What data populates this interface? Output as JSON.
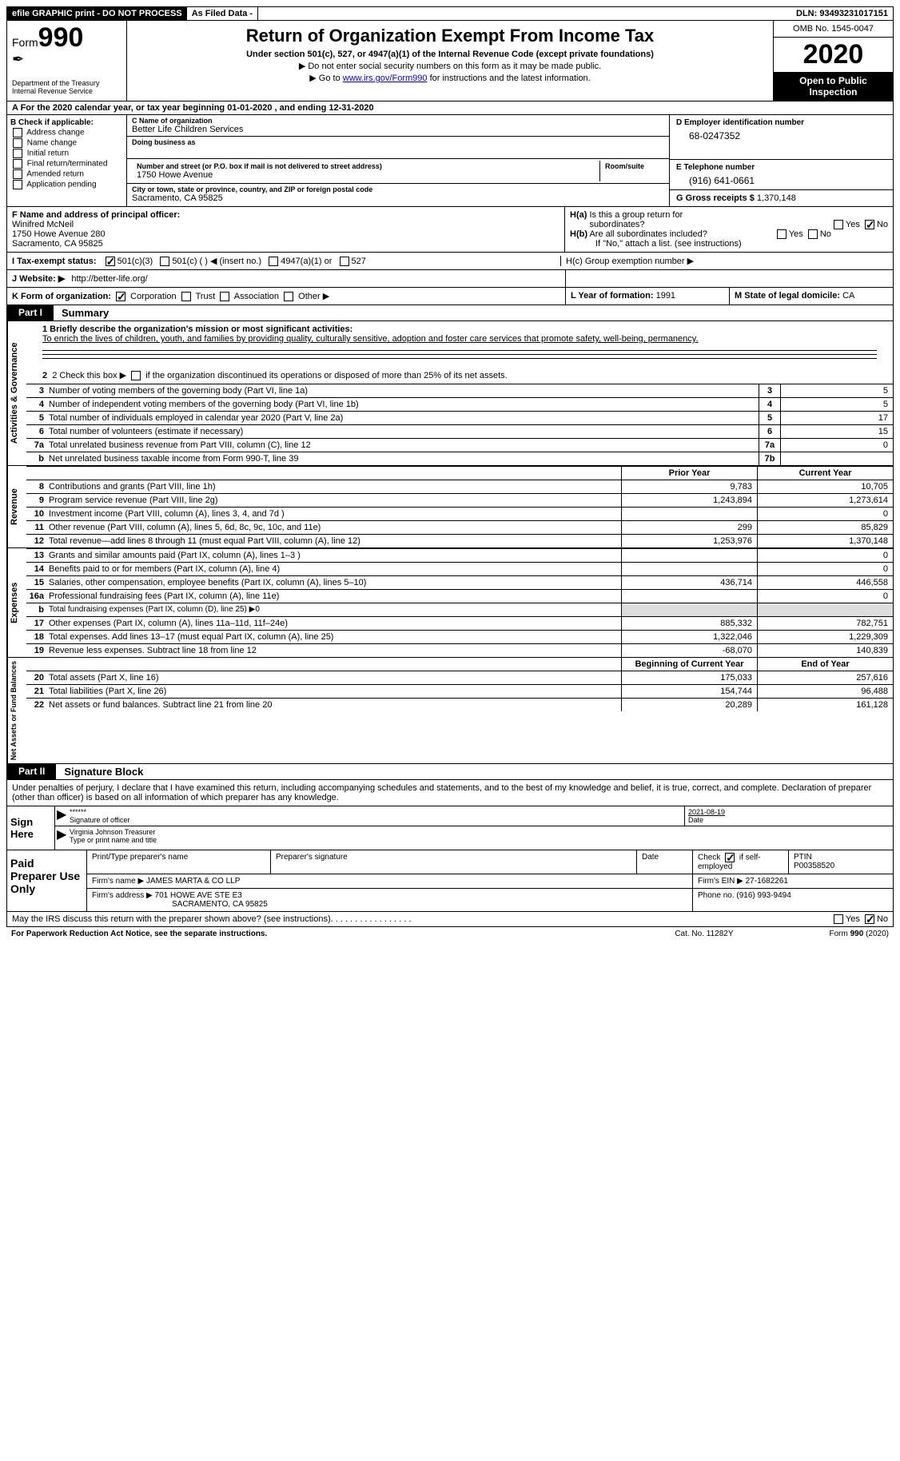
{
  "topbar": {
    "efile": "efile GRAPHIC print - DO NOT PROCESS",
    "asfiled": "As Filed Data -",
    "dln_label": "DLN:",
    "dln": "93493231017151"
  },
  "header": {
    "form_label": "Form",
    "form_num": "990",
    "dept": "Department of the Treasury\nInternal Revenue Service",
    "title": "Return of Organization Exempt From Income Tax",
    "sub": "Under section 501(c), 527, or 4947(a)(1) of the Internal Revenue Code (except private foundations)",
    "line1": "▶ Do not enter social security numbers on this form as it may be made public.",
    "line2_pre": "▶ Go to ",
    "line2_link": "www.irs.gov/Form990",
    "line2_post": " for instructions and the latest information.",
    "omb": "OMB No. 1545-0047",
    "year": "2020",
    "oti": "Open to Public Inspection"
  },
  "rowA": "A   For the 2020 calendar year, or tax year beginning 01-01-2020   , and ending 12-31-2020",
  "colB": {
    "label": "B Check if applicable:",
    "items": [
      "Address change",
      "Name change",
      "Initial return",
      "Final return/terminated",
      "Amended return",
      "Application pending"
    ]
  },
  "org": {
    "c_label": "C Name of organization",
    "name": "Better Life Children Services",
    "dba_label": "Doing business as",
    "dba": "",
    "addr_label": "Number and street (or P.O. box if mail is not delivered to street address)",
    "room_label": "Room/suite",
    "addr": "1750 Howe Avenue",
    "city_label": "City or town, state or province, country, and ZIP or foreign postal code",
    "city": "Sacramento, CA  95825"
  },
  "right": {
    "d_label": "D Employer identification number",
    "ein": "68-0247352",
    "e_label": "E Telephone number",
    "phone": "(916) 641-0661",
    "g_label": "G Gross receipts $",
    "gross": "1,370,148"
  },
  "f": {
    "label": "F  Name and address of principal officer:",
    "name": "Winifred McNeil",
    "addr1": "1750 Howe Avenue 280",
    "addr2": "Sacramento, CA  95825"
  },
  "h": {
    "a": "H(a)  Is this a group return for subordinates?",
    "b": "H(b)  Are all subordinates included?",
    "note": "If \"No,\" attach a list. (see instructions)",
    "c": "H(c)  Group exemption number ▶",
    "yes": "Yes",
    "no": "No"
  },
  "i": {
    "label": "I   Tax-exempt status:",
    "opt1": "501(c)(3)",
    "opt2": "501(c) (   ) ◀ (insert no.)",
    "opt3": "4947(a)(1) or",
    "opt4": "527"
  },
  "j": {
    "label": "J   Website: ▶",
    "val": "http://better-life.org/"
  },
  "k": {
    "label": "K Form of organization:",
    "corp": "Corporation",
    "trust": "Trust",
    "assoc": "Association",
    "other": "Other ▶"
  },
  "l": {
    "label": "L Year of formation:",
    "val": "1991"
  },
  "m": {
    "label": "M State of legal domicile:",
    "val": "CA"
  },
  "part1": {
    "tag": "Part I",
    "title": "Summary"
  },
  "s1": {
    "q1": "1 Briefly describe the organization's mission or most significant activities:",
    "a1": "To enrich the lives of children, youth, and families by providing quality, culturally sensitive, adoption and foster care services that promote safety, well-being, permanency.",
    "q2": "2   Check this box ▶",
    "q2b": " if the organization discontinued its operations or disposed of more than 25% of its net assets.",
    "rows": [
      {
        "n": "3",
        "t": "Number of voting members of the governing body (Part VI, line 1a)",
        "c": "3",
        "v": "5"
      },
      {
        "n": "4",
        "t": "Number of independent voting members of the governing body (Part VI, line 1b)",
        "c": "4",
        "v": "5"
      },
      {
        "n": "5",
        "t": "Total number of individuals employed in calendar year 2020 (Part V, line 2a)",
        "c": "5",
        "v": "17"
      },
      {
        "n": "6",
        "t": "Total number of volunteers (estimate if necessary)",
        "c": "6",
        "v": "15"
      },
      {
        "n": "7a",
        "t": "Total unrelated business revenue from Part VIII, column (C), line 12",
        "c": "7a",
        "v": "0"
      },
      {
        "n": "b",
        "t": "Net unrelated business taxable income from Form 990-T, line 39",
        "c": "7b",
        "v": ""
      }
    ],
    "vtab_ag": "Activities & Governance"
  },
  "fin_hdr": {
    "prior": "Prior Year",
    "curr": "Current Year"
  },
  "fin_hdr2": {
    "prior": "Beginning of Current Year",
    "curr": "End of Year"
  },
  "revenue": {
    "vtab": "Revenue",
    "rows": [
      {
        "n": "8",
        "t": "Contributions and grants (Part VIII, line 1h)",
        "p": "9,783",
        "c": "10,705"
      },
      {
        "n": "9",
        "t": "Program service revenue (Part VIII, line 2g)",
        "p": "1,243,894",
        "c": "1,273,614"
      },
      {
        "n": "10",
        "t": "Investment income (Part VIII, column (A), lines 3, 4, and 7d )",
        "p": "",
        "c": "0"
      },
      {
        "n": "11",
        "t": "Other revenue (Part VIII, column (A), lines 5, 6d, 8c, 9c, 10c, and 11e)",
        "p": "299",
        "c": "85,829"
      },
      {
        "n": "12",
        "t": "Total revenue—add lines 8 through 11 (must equal Part VIII, column (A), line 12)",
        "p": "1,253,976",
        "c": "1,370,148"
      }
    ]
  },
  "expenses": {
    "vtab": "Expenses",
    "rows": [
      {
        "n": "13",
        "t": "Grants and similar amounts paid (Part IX, column (A), lines 1–3 )",
        "p": "",
        "c": "0"
      },
      {
        "n": "14",
        "t": "Benefits paid to or for members (Part IX, column (A), line 4)",
        "p": "",
        "c": "0"
      },
      {
        "n": "15",
        "t": "Salaries, other compensation, employee benefits (Part IX, column (A), lines 5–10)",
        "p": "436,714",
        "c": "446,558"
      },
      {
        "n": "16a",
        "t": "Professional fundraising fees (Part IX, column (A), line 11e)",
        "p": "",
        "c": "0"
      },
      {
        "n": "b",
        "t": "Total fundraising expenses (Part IX, column (D), line 25) ▶0",
        "p": "—",
        "c": "—"
      },
      {
        "n": "17",
        "t": "Other expenses (Part IX, column (A), lines 11a–11d, 11f–24e)",
        "p": "885,332",
        "c": "782,751"
      },
      {
        "n": "18",
        "t": "Total expenses. Add lines 13–17 (must equal Part IX, column (A), line 25)",
        "p": "1,322,046",
        "c": "1,229,309"
      },
      {
        "n": "19",
        "t": "Revenue less expenses. Subtract line 18 from line 12",
        "p": "-68,070",
        "c": "140,839"
      }
    ]
  },
  "netassets": {
    "vtab": "Net Assets or Fund Balances",
    "rows": [
      {
        "n": "20",
        "t": "Total assets (Part X, line 16)",
        "p": "175,033",
        "c": "257,616"
      },
      {
        "n": "21",
        "t": "Total liabilities (Part X, line 26)",
        "p": "154,744",
        "c": "96,488"
      },
      {
        "n": "22",
        "t": "Net assets or fund balances. Subtract line 21 from line 20",
        "p": "20,289",
        "c": "161,128"
      }
    ]
  },
  "part2": {
    "tag": "Part II",
    "title": "Signature Block"
  },
  "sig_text": "Under penalties of perjury, I declare that I have examined this return, including accompanying schedules and statements, and to the best of my knowledge and belief, it is true, correct, and complete. Declaration of preparer (other than officer) is based on all information of which preparer has any knowledge.",
  "sign": {
    "label": "Sign Here",
    "stars": "******",
    "sig_label": "Signature of officer",
    "date": "2021-08-19",
    "date_label": "Date",
    "name": "Virginia Johnson Treasurer",
    "name_label": "Type or print name and title"
  },
  "prep": {
    "label": "Paid Preparer Use Only",
    "h1": "Print/Type preparer's name",
    "h2": "Preparer's signature",
    "h3": "Date",
    "h4a": "Check",
    "h4b": "if self-employed",
    "h5": "PTIN",
    "ptin": "P00358520",
    "firm_label": "Firm's name    ▶",
    "firm": "JAMES MARTA & CO LLP",
    "ein_label": "Firm's EIN ▶",
    "ein": "27-1682261",
    "addr_label": "Firm's address ▶",
    "addr1": "701 HOWE AVE STE E3",
    "addr2": "SACRAMENTO, CA  95825",
    "phone_label": "Phone no.",
    "phone": "(916) 993-9494"
  },
  "bottom": {
    "q": "May the IRS discuss this return with the preparer shown above? (see instructions)",
    "yes": "Yes",
    "no": "No"
  },
  "foot": {
    "l": "For Paperwork Reduction Act Notice, see the separate instructions.",
    "m": "Cat. No. 11282Y",
    "r": "Form 990 (2020)"
  }
}
